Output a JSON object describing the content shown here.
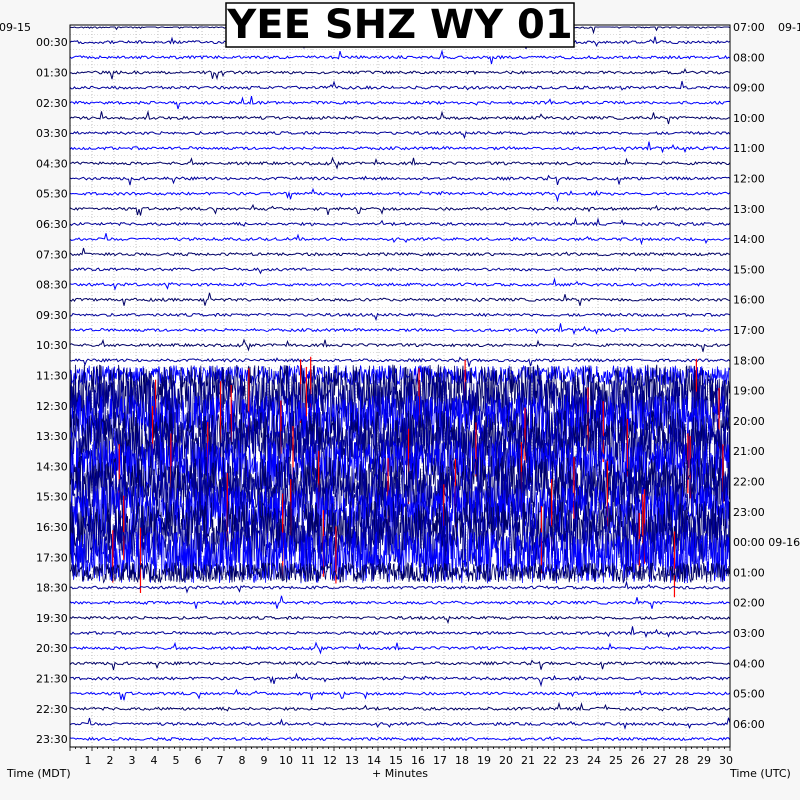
{
  "title": "YEE SHZ WY 01",
  "left_date": "09-15",
  "right_date": "09-1",
  "left_axis_label": "Time (MDT)",
  "right_axis_label": "Time (UTC)",
  "bottom_axis_label": "+ Minutes",
  "colors": {
    "trace_dark": "#000066",
    "trace_mid": "#000099",
    "trace_bright": "#0000ff",
    "trace_red": "#ff0000",
    "background": "#f7f7f7",
    "plot_bg": "#ffffff"
  },
  "chart_data": {
    "type": "line",
    "title": "YEE SHZ WY 01",
    "xlabel": "+ Minutes",
    "xlim": [
      0,
      30
    ],
    "x_ticks": [
      "1",
      "2",
      "3",
      "4",
      "5",
      "6",
      "7",
      "8",
      "9",
      "10",
      "11",
      "12",
      "13",
      "14",
      "15",
      "16",
      "17",
      "18",
      "19",
      "20",
      "21",
      "22",
      "23",
      "24",
      "25",
      "26",
      "27",
      "28",
      "29",
      "30"
    ],
    "left_ticks": [
      "00:30",
      "01:30",
      "02:30",
      "03:30",
      "04:30",
      "05:30",
      "06:30",
      "07:30",
      "08:30",
      "09:30",
      "10:30",
      "11:30",
      "12:30",
      "13:30",
      "14:30",
      "15:30",
      "16:30",
      "17:30",
      "18:30",
      "19:30",
      "20:30",
      "21:30",
      "22:30",
      "23:30"
    ],
    "right_ticks": [
      "07:00",
      "08:00",
      "09:00",
      "10:00",
      "11:00",
      "12:00",
      "13:00",
      "14:00",
      "15:00",
      "16:00",
      "17:00",
      "18:00",
      "19:00",
      "20:00",
      "21:00",
      "22:00",
      "23:00",
      "00:00 09-16",
      "01:00",
      "02:00",
      "03:00",
      "04:00",
      "05:00",
      "06:00"
    ],
    "rows": 48,
    "active_rows": [
      23,
      24,
      25,
      26,
      27,
      28,
      29,
      30,
      31,
      32,
      33,
      34,
      35,
      36
    ],
    "grid": true
  }
}
